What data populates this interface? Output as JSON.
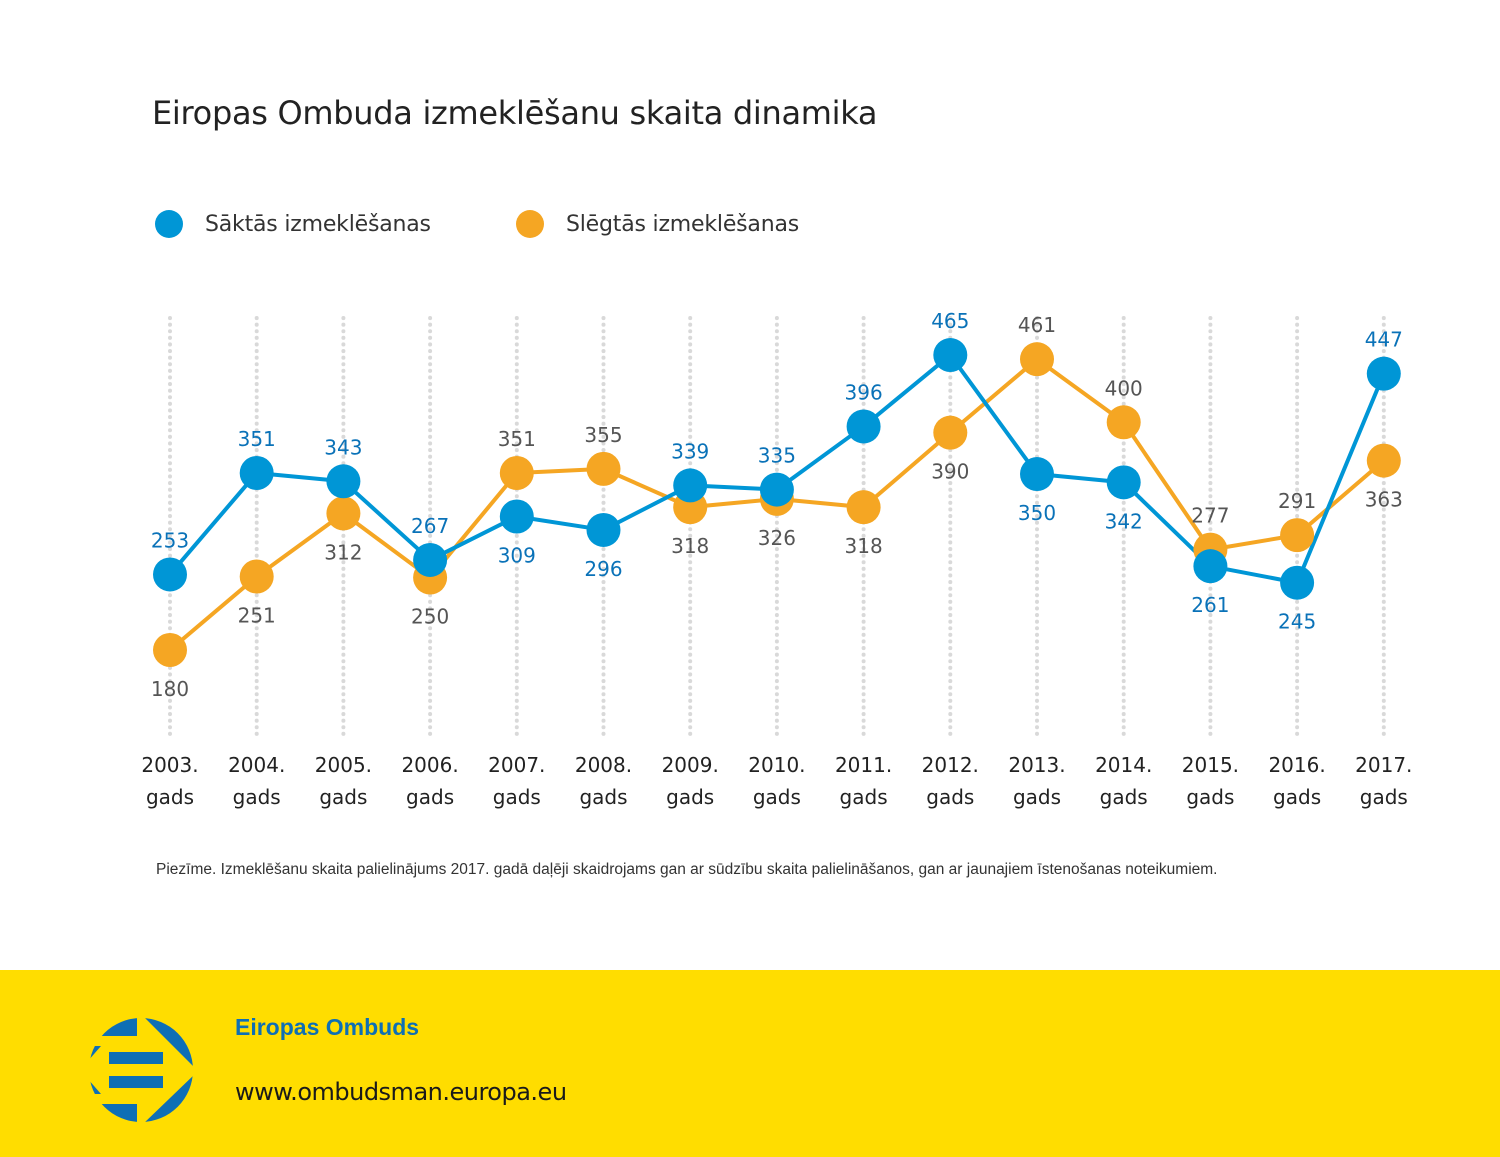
{
  "chart_data": {
    "type": "line",
    "title": "Eiropas Ombuda izmeklēšanu skaita dinamika",
    "xlabel": "",
    "ylabel": "",
    "categories": [
      [
        "2003.",
        "gads"
      ],
      [
        "2004.",
        "gads"
      ],
      [
        "2005.",
        "gads"
      ],
      [
        "2006.",
        "gads"
      ],
      [
        "2007.",
        "gads"
      ],
      [
        "2008.",
        "gads"
      ],
      [
        "2009.",
        "gads"
      ],
      [
        "2010.",
        "gads"
      ],
      [
        "2011.",
        "gads"
      ],
      [
        "2012.",
        "gads"
      ],
      [
        "2013.",
        "gads"
      ],
      [
        "2014.",
        "gads"
      ],
      [
        "2015.",
        "gads"
      ],
      [
        "2016.",
        "gads"
      ],
      [
        "2017.",
        "gads"
      ]
    ],
    "series": [
      {
        "name": "Sāktās izmeklēšanas",
        "color": "#0096d6",
        "label_color": "#0a72b8",
        "values": [
          253,
          351,
          343,
          267,
          309,
          296,
          339,
          335,
          396,
          465,
          350,
          342,
          261,
          245,
          447
        ],
        "label_positions": [
          "above",
          "above",
          "above",
          "above",
          "below",
          "below",
          "above",
          "above",
          "above",
          "above",
          "below",
          "below",
          "below",
          "below",
          "above"
        ]
      },
      {
        "name": "Slēgtās izmeklēšanas",
        "color": "#f5a623",
        "label_color": "#555555",
        "values": [
          180,
          251,
          312,
          250,
          351,
          355,
          318,
          326,
          318,
          390,
          461,
          400,
          277,
          291,
          363
        ],
        "label_positions": [
          "below",
          "below",
          "below",
          "below",
          "above",
          "above",
          "below",
          "below",
          "below",
          "below",
          "above",
          "above",
          "above",
          "above",
          "below"
        ]
      }
    ],
    "ylim": [
      150,
      500
    ],
    "grid": "vertical-dotted",
    "legend": "top-left"
  },
  "note": "Piezīme. Izmeklēšanu skaita palielinājums 2017. gadā daļēji skaidrojams gan ar sūdzību skaita palielināšanos, gan ar jaunajiem īstenošanas noteikumiem.",
  "footer": {
    "org_name": "Eiropas Ombuds",
    "url": "www.ombudsman.europa.eu",
    "logo_icon": "european-ombudsman-logo-icon",
    "background_color": "#ffdd00",
    "logo_color": "#0e6fb5"
  }
}
